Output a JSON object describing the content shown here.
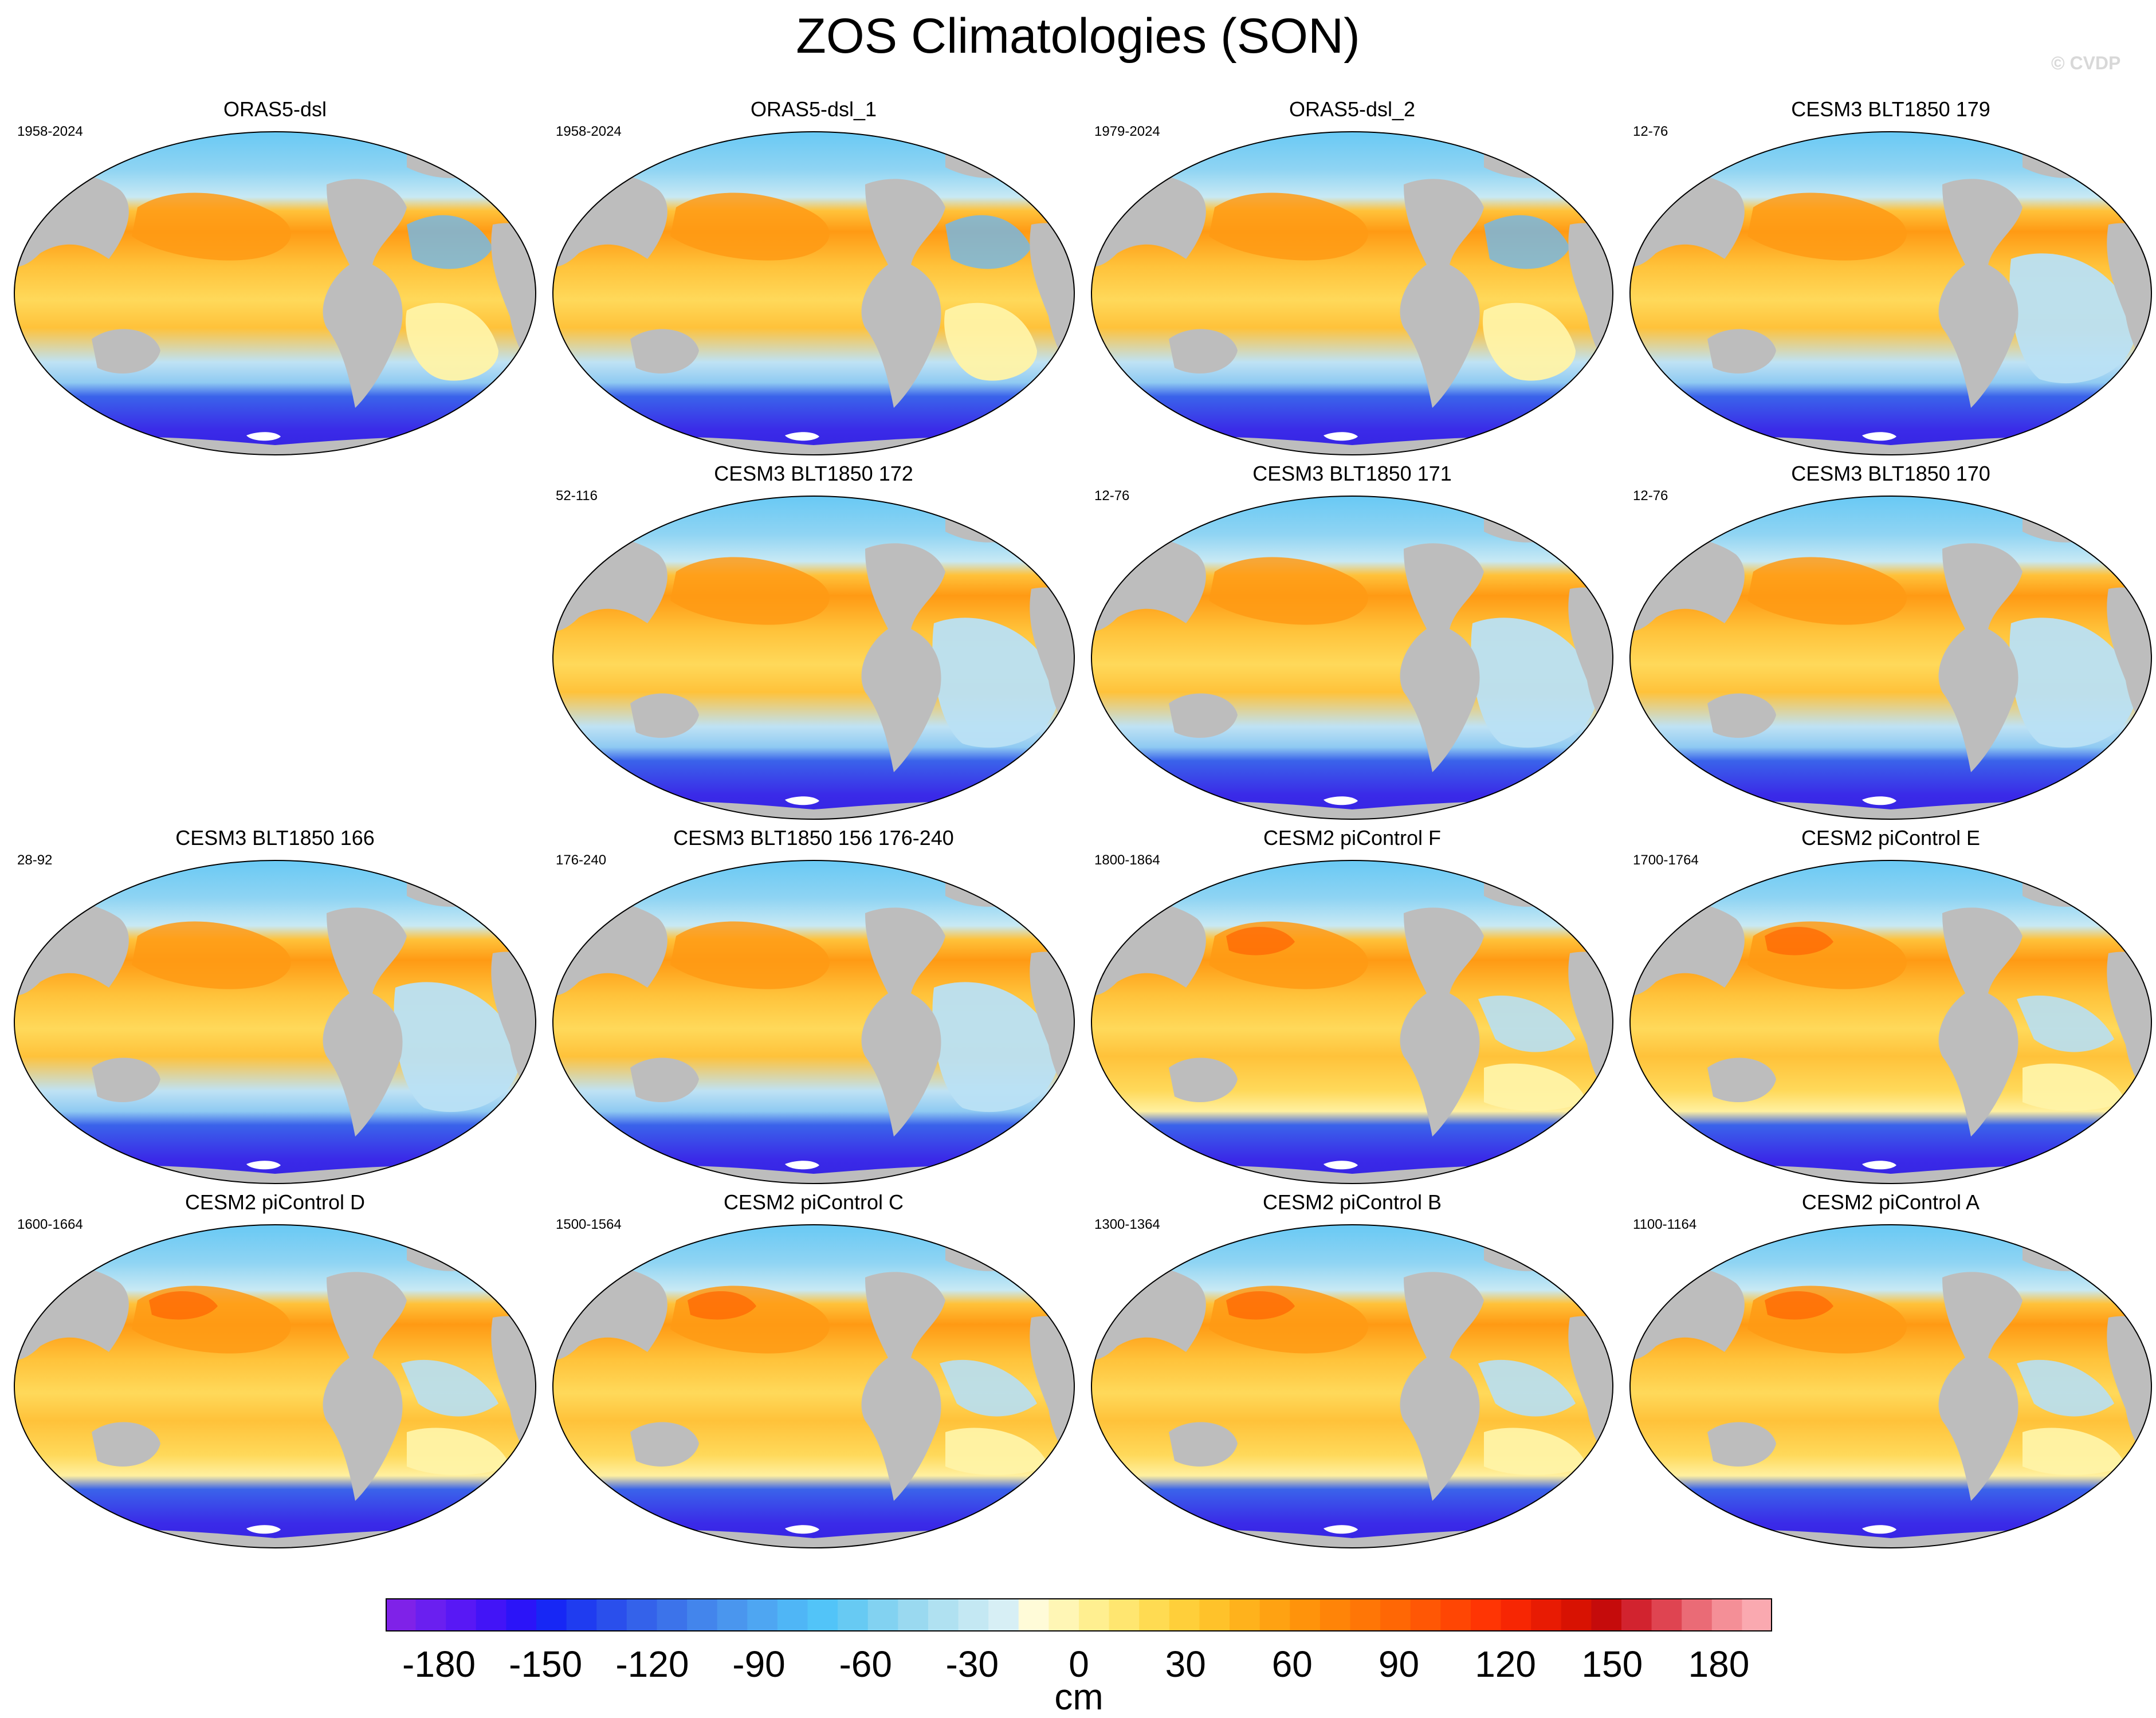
{
  "title": "ZOS Climatologies (SON)",
  "watermark": "© CVDP",
  "panels": [
    {
      "title": "ORAS5-dsl",
      "period": "1958-2024",
      "style": "oras"
    },
    {
      "title": "ORAS5-dsl_1",
      "period": "1958-2024",
      "style": "oras"
    },
    {
      "title": "ORAS5-dsl_2",
      "period": "1979-2024",
      "style": "oras"
    },
    {
      "title": "CESM3 BLT1850 179",
      "period": "12-76",
      "style": "cesm3"
    },
    null,
    {
      "title": "CESM3 BLT1850 172",
      "period": "52-116",
      "style": "cesm3"
    },
    {
      "title": "CESM3 BLT1850 171",
      "period": "12-76",
      "style": "cesm3"
    },
    {
      "title": "CESM3 BLT1850 170",
      "period": "12-76",
      "style": "cesm3"
    },
    {
      "title": "CESM3 BLT1850 166",
      "period": "28-92",
      "style": "cesm3"
    },
    {
      "title": "CESM3 BLT1850 156 176-240",
      "period": "176-240",
      "style": "cesm3"
    },
    {
      "title": "CESM2 piControl F",
      "period": "1800-1864",
      "style": "cesm2"
    },
    {
      "title": "CESM2 piControl E",
      "period": "1700-1764",
      "style": "cesm2"
    },
    {
      "title": "CESM2 piControl D",
      "period": "1600-1664",
      "style": "cesm2"
    },
    {
      "title": "CESM2 piControl C",
      "period": "1500-1564",
      "style": "cesm2"
    },
    {
      "title": "CESM2 piControl B",
      "period": "1300-1364",
      "style": "cesm2"
    },
    {
      "title": "CESM2 piControl A",
      "period": "1100-1164",
      "style": "cesm2"
    }
  ],
  "colorbar": {
    "units": "cm",
    "min": -195,
    "max": 195,
    "interval": 5,
    "tick_labels": [
      "-180",
      "-150",
      "-120",
      "-90",
      "-60",
      "-30",
      "0",
      "30",
      "60",
      "90",
      "120",
      "150",
      "180"
    ],
    "tick_values": [
      -180,
      -150,
      -120,
      -90,
      -60,
      -30,
      0,
      30,
      60,
      90,
      120,
      150,
      180
    ],
    "colors": [
      "#7f22e8",
      "#6a1ff0",
      "#5818f5",
      "#4214f7",
      "#2b14f8",
      "#1727f5",
      "#1f3cf0",
      "#2a4fec",
      "#3462ea",
      "#3c73ea",
      "#4385ec",
      "#4a96ee",
      "#4ea6f2",
      "#4fb6f6",
      "#52c4f8",
      "#67caf3",
      "#82d2f1",
      "#9ad9f0",
      "#b0e1f1",
      "#c4e8f3",
      "#d7eff5",
      "#fffbd8",
      "#fff6b5",
      "#ffef90",
      "#ffe670",
      "#ffdb52",
      "#ffcf3a",
      "#ffc22a",
      "#ffb21c",
      "#ffa212",
      "#ff930b",
      "#ff8408",
      "#ff7606",
      "#ff6705",
      "#ff5705",
      "#ff4604",
      "#ff3504",
      "#f72603",
      "#e81b03",
      "#d81202",
      "#c50b0b",
      "#d2232f",
      "#df4451",
      "#ea6b76",
      "#f48f97",
      "#faa9b0"
    ]
  },
  "map_legend_colors": {
    "land": "#bdbdbd",
    "arctic": "#5ec6f4",
    "north_atlantic": "#6fb8ee",
    "southern_ocean": "#3a63ea",
    "antarctic_margin": "#3a2ae8",
    "pacific_core": "#ff9a14",
    "pacific_warm": "#ffc23a",
    "tropics": "#ffd95a",
    "south_atlantic_oras": "#fff3a6",
    "south_atlantic_cesm3": "#b9e0f4",
    "antarctica": "#ffffff"
  }
}
